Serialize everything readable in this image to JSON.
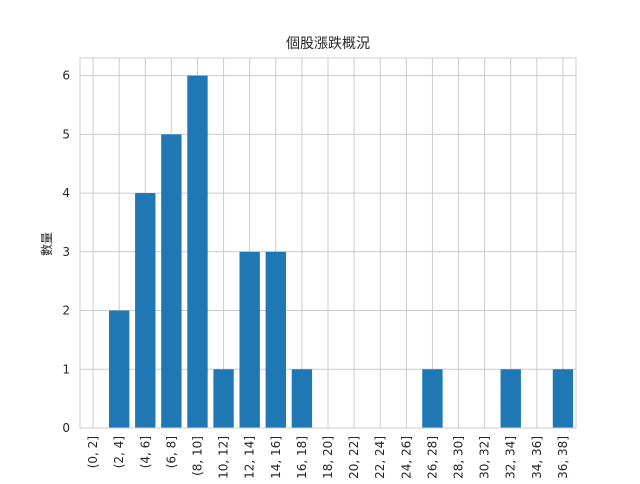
{
  "chart_data": {
    "type": "bar",
    "title": "個股漲跌概況",
    "xlabel": "",
    "ylabel": "數量",
    "categories": [
      "(0, 2]",
      "(2, 4]",
      "(4, 6]",
      "(6, 8]",
      "(8, 10]",
      "(10, 12]",
      "(12, 14]",
      "(14, 16]",
      "(16, 18]",
      "(18, 20]",
      "(20, 22]",
      "(22, 24]",
      "(24, 26]",
      "(26, 28]",
      "(28, 30]",
      "(30, 32]",
      "(32, 34]",
      "(34, 36]",
      "(36, 38]"
    ],
    "values": [
      0,
      2,
      4,
      5,
      6,
      1,
      3,
      3,
      1,
      0,
      0,
      0,
      0,
      1,
      0,
      0,
      1,
      0,
      1
    ],
    "ylim": [
      0,
      6.3
    ],
    "yticks": [
      0,
      1,
      2,
      3,
      4,
      5,
      6
    ],
    "grid": true,
    "bar_color": "#1f77b4",
    "grid_color": "#cccccc"
  }
}
